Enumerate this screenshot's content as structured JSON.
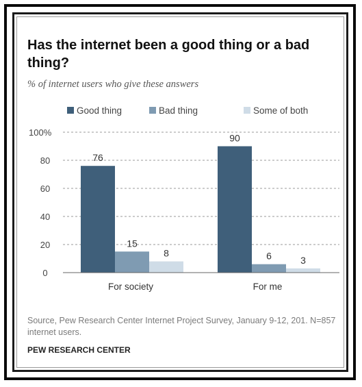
{
  "title": "Has the internet been a good thing or a bad thing?",
  "subtitle": "% of internet users who give these answers",
  "source": "Source, Pew Research Center Internet Project Survey, January 9-12, 201. N=857 internet users.",
  "organization": "PEW RESEARCH CENTER",
  "chart_data": {
    "type": "bar",
    "categories": [
      "For society",
      "For me"
    ],
    "series": [
      {
        "name": "Good thing",
        "values": [
          76,
          90
        ],
        "color": "#3f5f7a"
      },
      {
        "name": "Bad thing",
        "values": [
          15,
          6
        ],
        "color": "#7f9bb2"
      },
      {
        "name": "Some of both",
        "values": [
          8,
          3
        ],
        "color": "#cfdce7"
      }
    ],
    "ylim": [
      0,
      100
    ],
    "yticks": [
      0,
      20,
      40,
      60,
      80,
      100
    ],
    "ytick_labels": [
      "0",
      "20",
      "40",
      "60",
      "80",
      "100%"
    ],
    "grid": true,
    "legend": "top",
    "data_labels": true
  }
}
